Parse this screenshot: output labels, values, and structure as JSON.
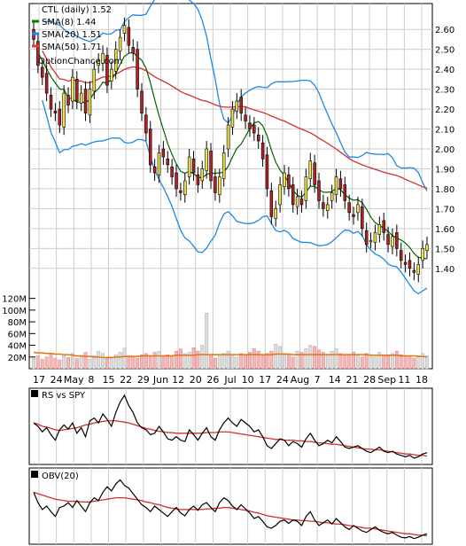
{
  "chart_data": {
    "type": "candlestick",
    "price_panel": {
      "title": "CTL (daily) 1.52",
      "watermark": "OptionChance.com",
      "ylim": [
        1.27,
        2.73
      ],
      "yticks": [
        1.4,
        1.5,
        1.6,
        1.7,
        1.8,
        1.9,
        2.0,
        2.1,
        2.2,
        2.3,
        2.4,
        2.5,
        2.6
      ],
      "ytick_labels": [
        "1.40",
        "1.50",
        "1.60",
        "1.70",
        "1.80",
        "1.90",
        "2.00",
        "2.10",
        "2.20",
        "2.30",
        "2.40",
        "2.50",
        "2.60"
      ],
      "legend": [
        {
          "label": "SMA(8) 1.44",
          "color": "#008000"
        },
        {
          "label": "SMA(20) 1.51",
          "color": "#1E88E5"
        },
        {
          "label": "SMA(50) 1.71",
          "color": "#E53935"
        }
      ],
      "series_colors": {
        "sma8": "#006400",
        "bb": "#1E88E5",
        "sma50": "#D32F2F",
        "sma_yellow": "#E8E800",
        "up": "#F2E64A",
        "down": "#B22222",
        "gray": "#AAAAAA"
      }
    },
    "x_labels": [
      "17",
      "24",
      "May",
      "8",
      "15",
      "22",
      "29",
      "Jun",
      "12",
      "20",
      "26",
      "Jul",
      "10",
      "17",
      "24",
      "Aug",
      "7",
      "14",
      "21",
      "28",
      "Sep",
      "11",
      "18"
    ],
    "closes": [
      2.55,
      2.42,
      2.36,
      2.28,
      2.2,
      2.18,
      2.12,
      2.28,
      2.22,
      2.36,
      2.24,
      2.28,
      2.18,
      2.3,
      2.4,
      2.44,
      2.48,
      2.32,
      2.4,
      2.5,
      2.56,
      2.62,
      2.52,
      2.48,
      2.3,
      2.18,
      2.08,
      1.92,
      1.88,
      1.98,
      1.96,
      1.92,
      1.86,
      1.8,
      1.78,
      1.84,
      1.96,
      1.88,
      1.82,
      1.9,
      2.0,
      1.84,
      1.78,
      1.86,
      1.98,
      2.12,
      2.2,
      2.24,
      2.18,
      2.14,
      2.1,
      2.08,
      2.04,
      1.95,
      1.8,
      1.66,
      1.7,
      1.82,
      1.88,
      1.8,
      1.72,
      1.76,
      1.72,
      1.86,
      1.94,
      1.82,
      1.74,
      1.7,
      1.72,
      1.78,
      1.86,
      1.8,
      1.74,
      1.68,
      1.66,
      1.72,
      1.6,
      1.52,
      1.54,
      1.58,
      1.62,
      1.58,
      1.52,
      1.56,
      1.5,
      1.44,
      1.42,
      1.4,
      1.38,
      1.42,
      1.5,
      1.52
    ],
    "volume_panel": {
      "yticks": [
        20,
        40,
        60,
        80,
        100,
        120
      ],
      "ytick_labels": [
        "20M",
        "40M",
        "60M",
        "80M",
        "100M",
        "120M"
      ],
      "ylim": [
        0,
        130
      ],
      "volumes": [
        18,
        22,
        16,
        20,
        25,
        18,
        15,
        22,
        19,
        26,
        17,
        21,
        28,
        16,
        22,
        30,
        26,
        18,
        20,
        24,
        28,
        35,
        22,
        20,
        18,
        24,
        26,
        20,
        28,
        30,
        22,
        24,
        20,
        30,
        34,
        26,
        28,
        36,
        30,
        40,
        95,
        22,
        18,
        24,
        26,
        30,
        22,
        20,
        26,
        24,
        28,
        34,
        30,
        22,
        26,
        30,
        42,
        38,
        26,
        24,
        20,
        30,
        28,
        34,
        40,
        38,
        32,
        28,
        24,
        30,
        34,
        26,
        22,
        24,
        28,
        22,
        20,
        26,
        24,
        20,
        28,
        24,
        22,
        26,
        30,
        24,
        22,
        20,
        18,
        22,
        26,
        22
      ],
      "avg": [
        28,
        27,
        27,
        26,
        26,
        25,
        25,
        24,
        24,
        23,
        22,
        22,
        21,
        21,
        20,
        20,
        19,
        19,
        19,
        20,
        20,
        21,
        21,
        21,
        21,
        22,
        22,
        22,
        22,
        22,
        22,
        22,
        22,
        23,
        23,
        23,
        23,
        23,
        24,
        24,
        24,
        24,
        24,
        24,
        24,
        24,
        24,
        24,
        24,
        24,
        24,
        24,
        24,
        24,
        24,
        24,
        25,
        25,
        25,
        25,
        24,
        24,
        24,
        24,
        24,
        24,
        24,
        24,
        24,
        24,
        24,
        24,
        24,
        24,
        24,
        24,
        24,
        24,
        23,
        23,
        23,
        23,
        23,
        23,
        23,
        22,
        22,
        22,
        22,
        21,
        21,
        20
      ]
    },
    "rs_panel": {
      "title": "RS vs SPY",
      "values": [
        0.55,
        0.5,
        0.42,
        0.48,
        0.38,
        0.3,
        0.45,
        0.52,
        0.46,
        0.55,
        0.4,
        0.48,
        0.35,
        0.58,
        0.62,
        0.55,
        0.68,
        0.6,
        0.5,
        0.7,
        0.85,
        0.95,
        0.8,
        0.7,
        0.55,
        0.48,
        0.45,
        0.38,
        0.4,
        0.5,
        0.42,
        0.32,
        0.3,
        0.35,
        0.3,
        0.28,
        0.45,
        0.38,
        0.3,
        0.4,
        0.48,
        0.35,
        0.3,
        0.45,
        0.55,
        0.62,
        0.55,
        0.5,
        0.6,
        0.55,
        0.5,
        0.42,
        0.45,
        0.35,
        0.22,
        0.18,
        0.25,
        0.32,
        0.3,
        0.22,
        0.28,
        0.25,
        0.2,
        0.32,
        0.4,
        0.3,
        0.22,
        0.25,
        0.3,
        0.26,
        0.35,
        0.28,
        0.2,
        0.18,
        0.2,
        0.22,
        0.18,
        0.14,
        0.12,
        0.16,
        0.2,
        0.14,
        0.12,
        0.14,
        0.1,
        0.08,
        0.06,
        0.08,
        0.04,
        0.06,
        0.1,
        0.12
      ],
      "ma": [
        0.55,
        0.53,
        0.5,
        0.49,
        0.47,
        0.45,
        0.44,
        0.45,
        0.46,
        0.47,
        0.48,
        0.5,
        0.52,
        0.53,
        0.55,
        0.56,
        0.57,
        0.58,
        0.58,
        0.58,
        0.57,
        0.56,
        0.55,
        0.53,
        0.51,
        0.49,
        0.47,
        0.46,
        0.44,
        0.43,
        0.42,
        0.41,
        0.41,
        0.4,
        0.4,
        0.4,
        0.4,
        0.4,
        0.4,
        0.4,
        0.41,
        0.41,
        0.41,
        0.42,
        0.42,
        0.42,
        0.41,
        0.4,
        0.39,
        0.38,
        0.37,
        0.36,
        0.35,
        0.34,
        0.33,
        0.32,
        0.31,
        0.31,
        0.3,
        0.3,
        0.3,
        0.29,
        0.29,
        0.28,
        0.28,
        0.27,
        0.26,
        0.26,
        0.25,
        0.24,
        0.24,
        0.23,
        0.22,
        0.21,
        0.2,
        0.19,
        0.18,
        0.17,
        0.17,
        0.16,
        0.16,
        0.15,
        0.14,
        0.13,
        0.12,
        0.11,
        0.1,
        0.1,
        0.09,
        0.08,
        0.08,
        0.07
      ]
    },
    "obv_panel": {
      "title": "OBV(20)",
      "values": [
        0.7,
        0.55,
        0.45,
        0.5,
        0.42,
        0.35,
        0.48,
        0.5,
        0.55,
        0.48,
        0.58,
        0.5,
        0.42,
        0.55,
        0.62,
        0.58,
        0.7,
        0.78,
        0.72,
        0.82,
        0.88,
        0.8,
        0.76,
        0.68,
        0.6,
        0.52,
        0.48,
        0.42,
        0.5,
        0.45,
        0.4,
        0.35,
        0.42,
        0.48,
        0.4,
        0.36,
        0.45,
        0.5,
        0.44,
        0.52,
        0.55,
        0.48,
        0.42,
        0.55,
        0.62,
        0.58,
        0.5,
        0.45,
        0.52,
        0.46,
        0.4,
        0.32,
        0.35,
        0.28,
        0.2,
        0.18,
        0.22,
        0.28,
        0.3,
        0.25,
        0.3,
        0.28,
        0.22,
        0.35,
        0.42,
        0.3,
        0.22,
        0.26,
        0.3,
        0.24,
        0.32,
        0.26,
        0.2,
        0.16,
        0.22,
        0.18,
        0.14,
        0.12,
        0.16,
        0.2,
        0.15,
        0.12,
        0.1,
        0.12,
        0.08,
        0.05,
        0.04,
        0.06,
        0.03,
        0.05,
        0.08,
        0.1
      ],
      "ma": [
        0.7,
        0.68,
        0.66,
        0.64,
        0.62,
        0.6,
        0.59,
        0.58,
        0.57,
        0.57,
        0.57,
        0.56,
        0.56,
        0.56,
        0.57,
        0.58,
        0.59,
        0.6,
        0.61,
        0.62,
        0.62,
        0.62,
        0.61,
        0.6,
        0.59,
        0.58,
        0.56,
        0.55,
        0.53,
        0.52,
        0.5,
        0.48,
        0.47,
        0.46,
        0.45,
        0.45,
        0.45,
        0.45,
        0.45,
        0.45,
        0.46,
        0.46,
        0.47,
        0.47,
        0.48,
        0.48,
        0.47,
        0.46,
        0.45,
        0.44,
        0.43,
        0.41,
        0.4,
        0.38,
        0.36,
        0.35,
        0.34,
        0.33,
        0.32,
        0.31,
        0.3,
        0.3,
        0.29,
        0.29,
        0.28,
        0.28,
        0.27,
        0.26,
        0.26,
        0.25,
        0.24,
        0.24,
        0.23,
        0.22,
        0.21,
        0.2,
        0.19,
        0.18,
        0.18,
        0.17,
        0.16,
        0.15,
        0.14,
        0.13,
        0.12,
        0.11,
        0.1,
        0.1,
        0.09,
        0.08,
        0.08,
        0.07
      ]
    }
  }
}
